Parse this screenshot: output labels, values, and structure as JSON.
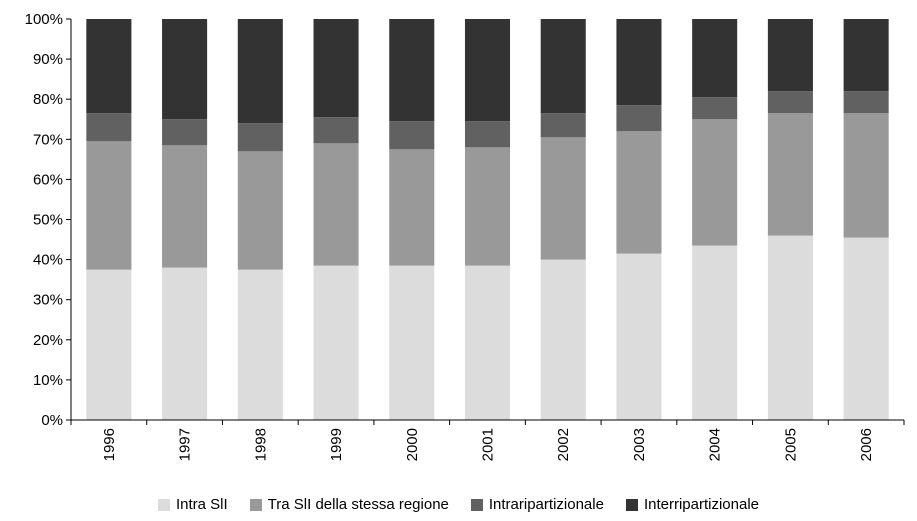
{
  "chart_data": {
    "type": "bar",
    "stacked": true,
    "normalized": true,
    "categories": [
      "1996",
      "1997",
      "1998",
      "1999",
      "2000",
      "2001",
      "2002",
      "2003",
      "2004",
      "2005",
      "2006"
    ],
    "ylim": [
      0,
      100
    ],
    "yticks": [
      "0%",
      "10%",
      "20%",
      "30%",
      "40%",
      "50%",
      "60%",
      "70%",
      "80%",
      "90%",
      "100%"
    ],
    "grid": false,
    "legend_position": "bottom",
    "series": [
      {
        "name": "Intra SlI",
        "color": "#dcdcdc",
        "values": [
          37.5,
          38.0,
          37.5,
          38.5,
          38.5,
          38.5,
          40.0,
          41.5,
          43.5,
          46.0,
          45.5
        ]
      },
      {
        "name": "Tra SlI della stessa regione",
        "color": "#999999",
        "values": [
          32.0,
          30.5,
          29.5,
          30.5,
          29.0,
          29.5,
          30.5,
          30.5,
          31.5,
          30.5,
          31.0
        ]
      },
      {
        "name": "Intraripartizionale",
        "color": "#616161",
        "values": [
          7.0,
          6.5,
          7.0,
          6.5,
          7.0,
          6.5,
          6.0,
          6.5,
          5.5,
          5.5,
          5.5
        ]
      },
      {
        "name": "Interripartizionale",
        "color": "#333333",
        "values": [
          23.5,
          25.0,
          26.0,
          24.5,
          25.5,
          25.5,
          23.5,
          21.5,
          19.5,
          18.0,
          18.0
        ]
      }
    ]
  }
}
